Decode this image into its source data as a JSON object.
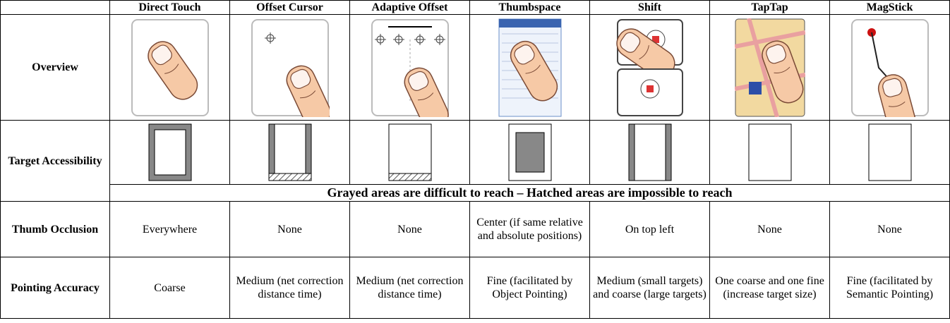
{
  "table": {
    "columns": [
      "Direct Touch",
      "Offset Cursor",
      "Adaptive Offset",
      "Thumbspace",
      "Shift",
      "TapTap",
      "MagStick"
    ],
    "row_labels": [
      "Overview",
      "Target Accessibility",
      "Thumb Occlusion",
      "Pointing Accuracy"
    ],
    "note": "Grayed areas are difficult to reach – Hatched areas are impossible to reach",
    "thumb_occlusion": [
      "Everywhere",
      "None",
      "None",
      "Center (if same relative and absolute positions)",
      "On top left",
      "None",
      "None"
    ],
    "pointing_accuracy": [
      "Coarse",
      "Medium (net correction distance time)",
      "Medium (net correction distance time)",
      "Fine (facilitated by Object Pointing)",
      "Medium (small targets) and coarse (large targets)",
      "One coarse and one fine (increase target size)",
      "Fine (facilitated by Semantic Pointing)"
    ]
  }
}
